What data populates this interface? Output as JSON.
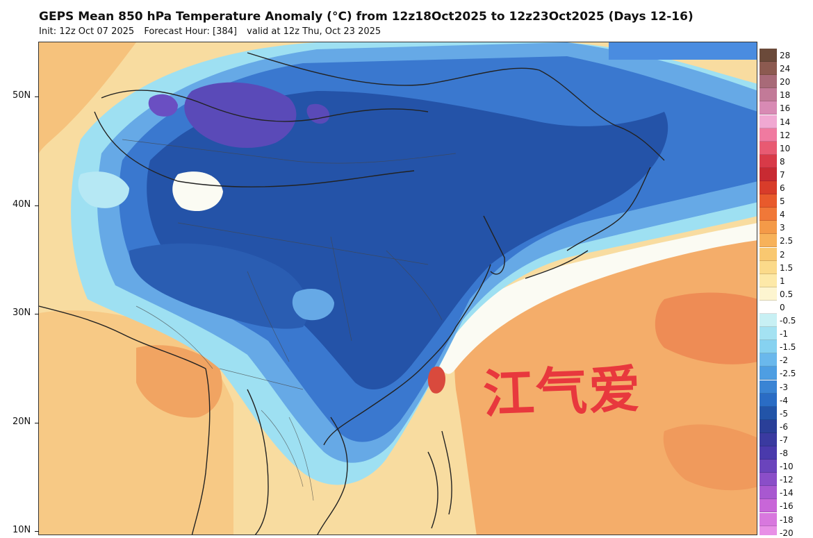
{
  "header": {
    "title": "GEPS Mean 850 hPa Temperature Anomaly (°C) from 12z18Oct2025 to 12z23Oct2025 (Days 12-16)",
    "init": "Init: 12z Oct 07 2025",
    "forecast_hour": "Forecast Hour: [384]",
    "valid": "valid at 12z Thu, Oct 23 2025"
  },
  "map": {
    "latitude_labels": [
      "50N",
      "40N",
      "30N",
      "20N",
      "10N"
    ],
    "region": "East Asia",
    "field": "850 hPa temperature anomaly",
    "colors": {
      "deep_purple": "#6a4fc2",
      "dark_blue": "#2453a8",
      "blue": "#3a78cf",
      "light_blue": "#66a9e6",
      "cyan": "#9ee0f2",
      "white": "#fbfbf3",
      "pale_yellow": "#fbe9a8",
      "light_orange": "#f6c783",
      "orange": "#f3a766",
      "dark_orange": "#ee8a54",
      "red": "#d94a3d"
    }
  },
  "colorbar": {
    "labels": [
      "28",
      "24",
      "20",
      "18",
      "16",
      "14",
      "12",
      "10",
      "8",
      "7",
      "6",
      "5",
      "4",
      "3",
      "2.5",
      "2",
      "1.5",
      "1",
      "0.5",
      "0",
      "-0.5",
      "-1",
      "-1.5",
      "-2",
      "-2.5",
      "-3",
      "-4",
      "-5",
      "-6",
      "-7",
      "-8",
      "-10",
      "-12",
      "-14",
      "-16",
      "-18",
      "-20"
    ],
    "colors": [
      "#6b4a3a",
      "#8c5a50",
      "#a86a78",
      "#c27a98",
      "#d88ab4",
      "#f0a8d2",
      "#f07aa0",
      "#e85a72",
      "#d83a48",
      "#c82a32",
      "#d83c2a",
      "#e85a2c",
      "#f07838",
      "#f49a48",
      "#f7b25a",
      "#f9c870",
      "#fbda8a",
      "#fde9a8",
      "#fdf5d0",
      "#ffffff",
      "#c8f0f4",
      "#a4e2f2",
      "#86d2f0",
      "#6ab8ec",
      "#4e9ee2",
      "#3a84d4",
      "#2a6cc4",
      "#2254a8",
      "#2a3f98",
      "#3a3aa0",
      "#4a3aac",
      "#6a44bc",
      "#8a4ec8",
      "#a858d0",
      "#c866d8",
      "#d878de",
      "#e890e6"
    ]
  },
  "watermark": "江气爱"
}
